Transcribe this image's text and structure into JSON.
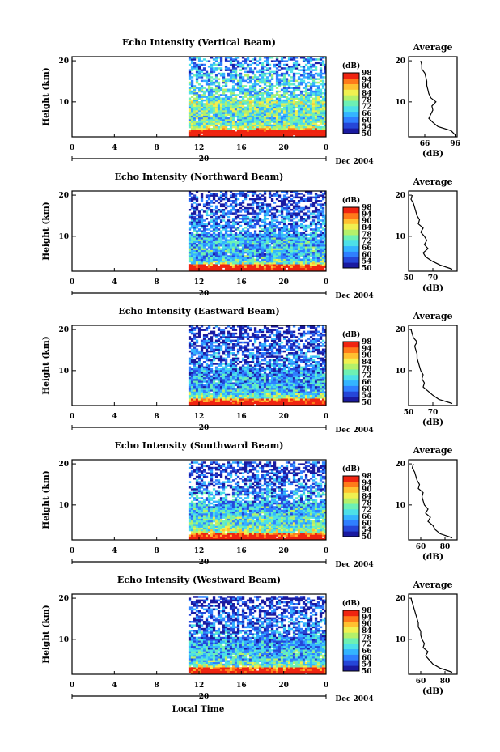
{
  "figure": {
    "xlabel": "Local Time",
    "colorbar_unit": "(dB)",
    "colorbar_ticks": [
      "50",
      "54",
      "60",
      "66",
      "72",
      "78",
      "84",
      "90",
      "94",
      "98"
    ],
    "colorbar_ticks_bottom_to_top": [
      50,
      54,
      60,
      66,
      72,
      78,
      84,
      90,
      94,
      98
    ],
    "colormap": [
      "#1a1aa0",
      "#2546d8",
      "#2f7fff",
      "#34b4ff",
      "#4de0e8",
      "#6df0b4",
      "#b4f06a",
      "#f0f050",
      "#ffc030",
      "#ff7a1a",
      "#f02410"
    ],
    "x_ticks": [
      "0",
      "4",
      "8",
      "12",
      "16",
      "20",
      "0"
    ],
    "y_ticks": [
      "10",
      "20"
    ],
    "date_label": "20",
    "date_suffix": "Dec 2004",
    "average_title": "Average",
    "average_xlabel": "(dB)"
  },
  "chart_data": [
    {
      "type": "heatmap",
      "title": "Echo Intensity (Vertical Beam)",
      "ylabel": "Height (km)",
      "xlabel": "",
      "x_range_hours": [
        0,
        24
      ],
      "ylim": [
        1.5,
        21
      ],
      "data_start_hour": 11,
      "clim_db": [
        50,
        98
      ],
      "profile": {
        "title": "Average",
        "xlabel": "(dB)",
        "xlim": [
          50,
          98
        ],
        "x_ticks": [
          "66",
          "96"
        ],
        "height_km": [
          2,
          3,
          4,
          5,
          6,
          7,
          8,
          9,
          10,
          11,
          12,
          13,
          14,
          15,
          16,
          17,
          18,
          19,
          20
        ],
        "mean_db": [
          96,
          92,
          79,
          74,
          70,
          72,
          74,
          73,
          77,
          72,
          70,
          69,
          68,
          68,
          67,
          66,
          63,
          63,
          62
        ]
      }
    },
    {
      "type": "heatmap",
      "title": "Echo Intensity (Northward Beam)",
      "ylabel": "Height (km)",
      "xlabel": "",
      "x_range_hours": [
        0,
        24
      ],
      "ylim": [
        1.5,
        21
      ],
      "data_start_hour": 11,
      "clim_db": [
        50,
        98
      ],
      "profile": {
        "title": "Average",
        "xlabel": "(dB)",
        "xlim": [
          50,
          90
        ],
        "x_ticks": [
          "50",
          "70"
        ],
        "height_km": [
          2,
          3,
          4,
          5,
          6,
          7,
          8,
          9,
          10,
          11,
          12,
          13,
          14,
          15,
          16,
          17,
          18,
          19,
          20
        ],
        "mean_db": [
          86,
          76,
          69,
          64,
          62,
          66,
          63,
          65,
          63,
          60,
          62,
          58,
          59,
          57,
          56,
          55,
          54,
          52,
          53
        ]
      }
    },
    {
      "type": "heatmap",
      "title": "Echo Intensity (Eastward Beam)",
      "ylabel": "Height (km)",
      "xlabel": "",
      "x_range_hours": [
        0,
        24
      ],
      "ylim": [
        1.5,
        21
      ],
      "data_start_hour": 11,
      "clim_db": [
        50,
        98
      ],
      "profile": {
        "title": "Average",
        "xlabel": "(dB)",
        "xlim": [
          50,
          90
        ],
        "x_ticks": [
          "50",
          "70"
        ],
        "height_km": [
          2,
          3,
          4,
          5,
          6,
          7,
          8,
          9,
          10,
          11,
          12,
          13,
          14,
          15,
          16,
          17,
          18,
          19,
          20
        ],
        "mean_db": [
          86,
          75,
          70,
          66,
          62,
          63,
          61,
          62,
          60,
          59,
          58,
          57,
          57,
          56,
          55,
          57,
          54,
          53,
          52
        ]
      }
    },
    {
      "type": "heatmap",
      "title": "Echo Intensity (Southward Beam)",
      "ylabel": "Height (km)",
      "xlabel": "",
      "x_range_hours": [
        0,
        24
      ],
      "ylim": [
        1.5,
        21
      ],
      "data_start_hour": 11,
      "clim_db": [
        50,
        98
      ],
      "profile": {
        "title": "Average",
        "xlabel": "(dB)",
        "xlim": [
          50,
          90
        ],
        "x_ticks": [
          "60",
          "80"
        ],
        "height_km": [
          2,
          3,
          4,
          5,
          6,
          7,
          8,
          9,
          10,
          11,
          12,
          13,
          14,
          15,
          16,
          17,
          18,
          19,
          20
        ],
        "mean_db": [
          86,
          76,
          72,
          70,
          66,
          68,
          64,
          66,
          63,
          62,
          61,
          62,
          58,
          59,
          57,
          56,
          55,
          53,
          54
        ]
      }
    },
    {
      "type": "heatmap",
      "title": "Echo Intensity (Westward Beam)",
      "ylabel": "Height (km)",
      "xlabel": "Local Time",
      "x_range_hours": [
        0,
        24
      ],
      "ylim": [
        1.5,
        21
      ],
      "data_start_hour": 11,
      "clim_db": [
        50,
        98
      ],
      "profile": {
        "title": "Average",
        "xlabel": "(dB)",
        "xlim": [
          50,
          90
        ],
        "x_ticks": [
          "60",
          "80"
        ],
        "height_km": [
          2,
          3,
          4,
          5,
          6,
          7,
          8,
          9,
          10,
          11,
          12,
          13,
          14,
          15,
          16,
          17,
          18,
          19,
          20
        ],
        "mean_db": [
          86,
          76,
          70,
          67,
          64,
          66,
          62,
          63,
          61,
          60,
          60,
          58,
          58,
          57,
          56,
          55,
          54,
          53,
          52
        ]
      }
    }
  ]
}
